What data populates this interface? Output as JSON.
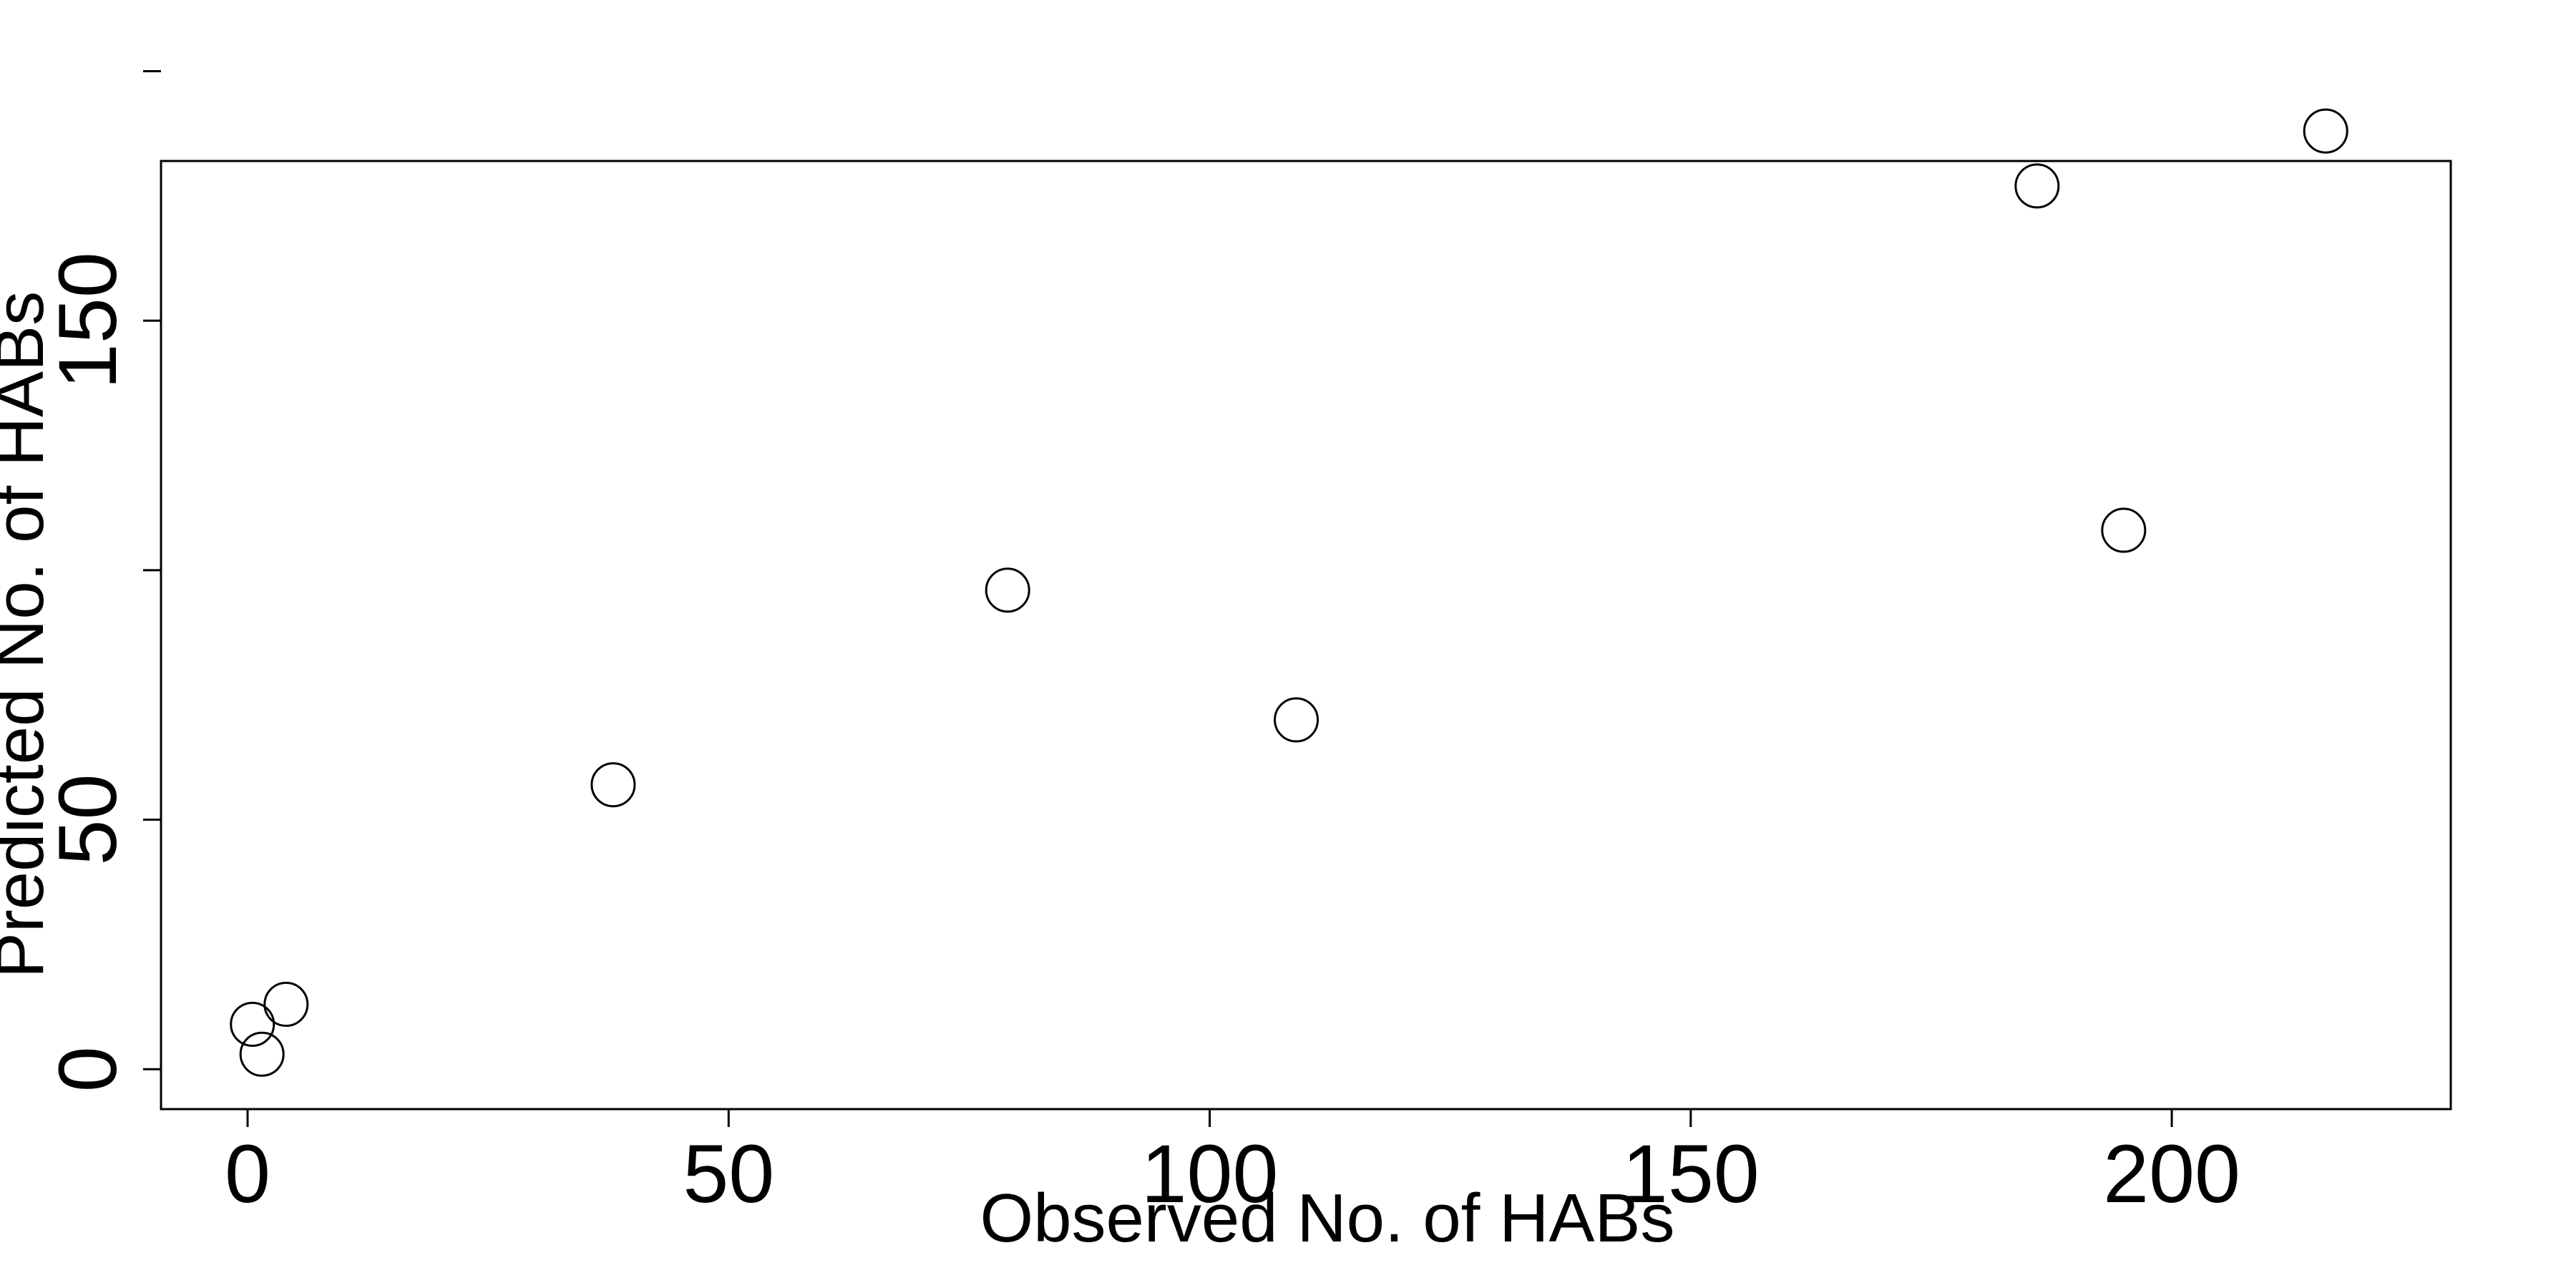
{
  "chart_data": {
    "type": "scatter",
    "title": "",
    "xlabel": "Observed No. of HABs",
    "ylabel": "Predicted No. of HABs",
    "xlim": [
      -9,
      229
    ],
    "ylim": [
      -8,
      182
    ],
    "x_ticks": [
      0,
      50,
      100,
      150,
      200
    ],
    "x_tick_labels": [
      "0",
      "50",
      "100",
      "150",
      "200"
    ],
    "y_ticks": [
      0,
      50,
      100,
      150,
      200
    ],
    "y_tick_labels": [
      "0",
      "50",
      "",
      "150",
      ""
    ],
    "grid": false,
    "legend": false,
    "marker": "open-circle",
    "color": "#000000",
    "points": [
      {
        "x": 0.5,
        "y": 9
      },
      {
        "x": 1.5,
        "y": 3
      },
      {
        "x": 4,
        "y": 13
      },
      {
        "x": 38,
        "y": 57
      },
      {
        "x": 79,
        "y": 96
      },
      {
        "x": 109,
        "y": 70
      },
      {
        "x": 186,
        "y": 177
      },
      {
        "x": 195,
        "y": 108
      },
      {
        "x": 216,
        "y": 188
      }
    ]
  }
}
